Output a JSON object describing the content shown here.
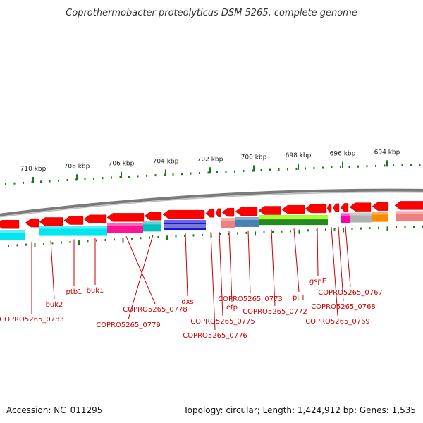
{
  "title": "Coprothermobacter proteolyticus DSM 5265, complete genome",
  "footer": {
    "accession": "Accession: NC_011295",
    "summary": "Topology: circular; Length: 1,424,912 bp; Genes: 1,535"
  },
  "colors": {
    "cds": "#ff0000",
    "backbone": "#808080",
    "tick": "#1a7a1a",
    "label": "#cc0000"
  },
  "scale_ticks": [
    {
      "label": "710 kbp"
    },
    {
      "label": "708 kbp"
    },
    {
      "label": "706 kbp"
    },
    {
      "label": "704 kbp"
    },
    {
      "label": "702 kbp"
    },
    {
      "label": "700 kbp"
    },
    {
      "label": "698 kbp"
    },
    {
      "label": "696 kbp"
    },
    {
      "label": "694 kbp"
    }
  ],
  "cog_segments": [
    {
      "color": "#00e5ee"
    },
    {
      "color": "#00e5ee"
    },
    {
      "color": "#ff1493"
    },
    {
      "color": "#00bfbf"
    },
    {
      "color": "#1414e0"
    },
    {
      "color": "#f08080"
    },
    {
      "color": "#4682b4"
    },
    {
      "color": "#228b22"
    },
    {
      "color": "#ff00aa"
    },
    {
      "color": "#b0b0b0"
    },
    {
      "color": "#ff8c00"
    },
    {
      "color": "#f08080"
    }
  ],
  "gene_labels": [
    {
      "text": "COPRO5265_0783"
    },
    {
      "text": "buk2"
    },
    {
      "text": "ptb1"
    },
    {
      "text": "buk1"
    },
    {
      "text": "COPRO5265_0778"
    },
    {
      "text": "COPRO5265_0779"
    },
    {
      "text": "dxs"
    },
    {
      "text": "COPRO5265_0776"
    },
    {
      "text": "COPRO5265_0775"
    },
    {
      "text": "efp"
    },
    {
      "text": "COPRO5265_0773"
    },
    {
      "text": "COPRO5265_0772"
    },
    {
      "text": "pilT"
    },
    {
      "text": "gspE"
    },
    {
      "text": "COPRO5265_0769"
    },
    {
      "text": "COPRO5265_0768"
    },
    {
      "text": "COPRO5265_0767"
    }
  ]
}
